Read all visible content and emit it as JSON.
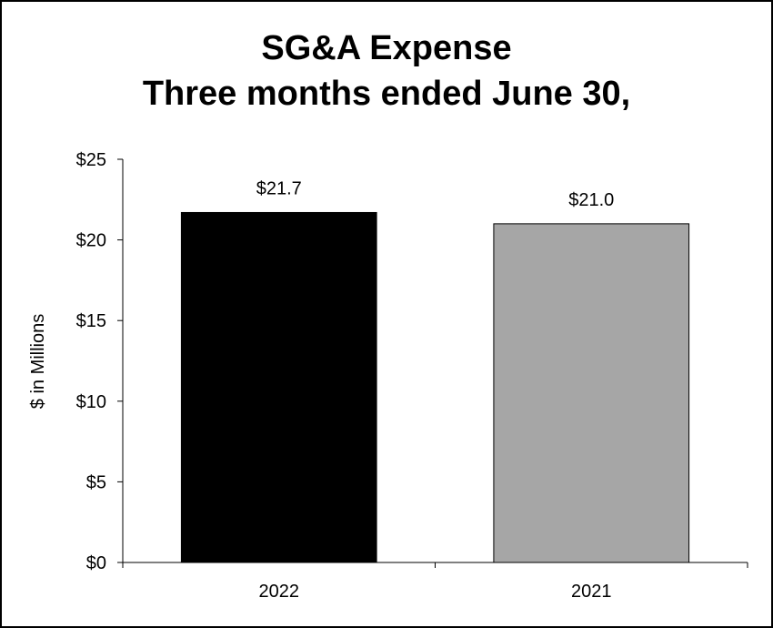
{
  "chart_data": {
    "type": "bar",
    "title_lines": [
      "SG&A Expense",
      "Three months ended June 30,"
    ],
    "xlabel": "",
    "ylabel": "$ in Millions",
    "categories": [
      "2022",
      "2021"
    ],
    "values": [
      21.7,
      21.0
    ],
    "value_labels": [
      "$21.7",
      "$21.0"
    ],
    "bar_colors": [
      "#000000",
      "#a6a6a6"
    ],
    "bar_border_color": "#000000",
    "ylim": [
      0,
      25
    ],
    "yticks": [
      0,
      5,
      10,
      15,
      20,
      25
    ],
    "ytick_labels": [
      "$0",
      "$5",
      "$10",
      "$15",
      "$20",
      "$25"
    ],
    "grid": false,
    "legend": "none"
  }
}
